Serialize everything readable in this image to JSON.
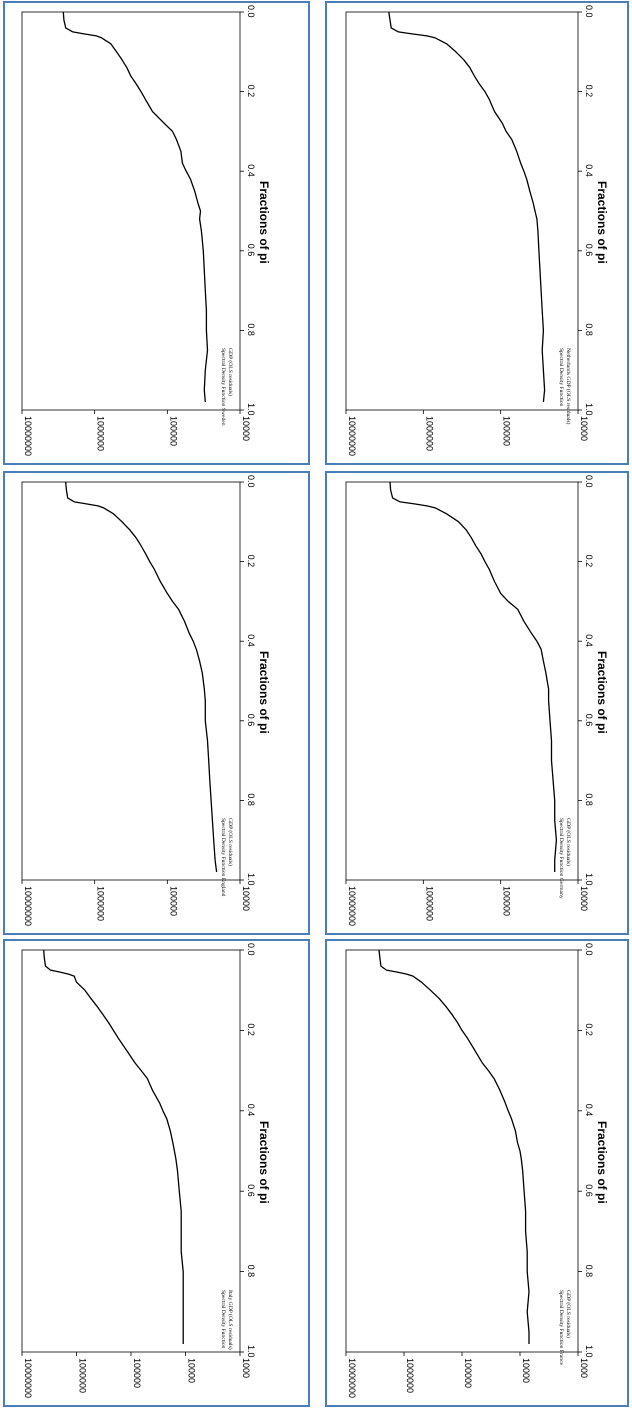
{
  "chart_data": [
    {
      "type": "line",
      "title": "",
      "xlabel": "Fractions of pi",
      "ylabel": "",
      "legend": [
        "Spectral Density Function Sweden",
        "GDP (OLS residuals)"
      ],
      "legend_position": "bottom-right",
      "xlim": [
        0,
        1
      ],
      "ylim": [
        10000,
        10000000
      ],
      "yscale": "log",
      "x_ticks": [
        "0.0",
        "0.2",
        "0.4",
        "0.6",
        "0.8",
        "1.0"
      ],
      "y_ticks": [
        "10000000",
        "1000000",
        "100000",
        "10000"
      ],
      "series": [
        {
          "x": [
            0.0,
            0.02,
            0.04,
            0.05,
            0.055,
            0.06,
            0.065,
            0.08,
            0.1,
            0.12,
            0.14,
            0.16,
            0.18,
            0.2,
            0.22,
            0.25,
            0.28,
            0.3,
            0.32,
            0.35,
            0.38,
            0.4,
            0.42,
            0.45,
            0.48,
            0.5,
            0.52,
            0.55,
            0.6,
            0.65,
            0.7,
            0.75,
            0.8,
            0.85,
            0.9,
            0.95,
            0.98
          ],
          "values": [
            2700000,
            2650000,
            2500000,
            2000000,
            1400000,
            950000,
            800000,
            600000,
            500000,
            420000,
            360000,
            320000,
            270000,
            230000,
            200000,
            160000,
            110000,
            85000,
            75000,
            65000,
            62000,
            55000,
            48000,
            42000,
            38000,
            35000,
            36000,
            34000,
            32000,
            31000,
            30000,
            29000,
            29000,
            28000,
            30000,
            31000,
            30000
          ]
        }
      ]
    },
    {
      "type": "line",
      "title": "",
      "xlabel": "Fractions of pi",
      "ylabel": "",
      "legend": [
        "Spectral Density Function",
        "Netherlands GDP (OLS residuals)"
      ],
      "legend_position": "bottom-right",
      "xlim": [
        0,
        1
      ],
      "ylim": [
        10000,
        10000000
      ],
      "yscale": "log",
      "x_ticks": [
        "0.0",
        "0.2",
        "0.4",
        "0.6",
        "0.8",
        "1.0"
      ],
      "y_ticks": [
        "10000000",
        "1000000",
        "100000",
        "10000"
      ],
      "series": [
        {
          "x": [
            0.0,
            0.02,
            0.04,
            0.05,
            0.055,
            0.06,
            0.065,
            0.08,
            0.1,
            0.12,
            0.14,
            0.16,
            0.18,
            0.2,
            0.22,
            0.25,
            0.28,
            0.3,
            0.32,
            0.35,
            0.38,
            0.4,
            0.42,
            0.45,
            0.48,
            0.5,
            0.52,
            0.55,
            0.6,
            0.65,
            0.7,
            0.75,
            0.8,
            0.85,
            0.9,
            0.95,
            0.98
          ],
          "values": [
            2800000,
            2700000,
            2600000,
            2100000,
            1400000,
            900000,
            700000,
            500000,
            380000,
            300000,
            250000,
            220000,
            190000,
            160000,
            140000,
            120000,
            95000,
            85000,
            72000,
            62000,
            55000,
            50000,
            46000,
            42000,
            38000,
            36000,
            34000,
            33000,
            32000,
            31000,
            30000,
            29000,
            28000,
            29000,
            28000,
            27000,
            28000
          ]
        }
      ]
    },
    {
      "type": "line",
      "title": "",
      "xlabel": "Fractions of pi",
      "ylabel": "",
      "legend": [
        "Spectral Density Function England",
        "GDP (OLS residuals)"
      ],
      "legend_position": "bottom-right",
      "xlim": [
        0,
        1
      ],
      "ylim": [
        10000,
        10000000
      ],
      "yscale": "log",
      "x_ticks": [
        "0.0",
        "0.2",
        "0.4",
        "0.6",
        "0.8",
        "1.0"
      ],
      "y_ticks": [
        "10000000",
        "1000000",
        "100000",
        "10000"
      ],
      "series": [
        {
          "x": [
            0.0,
            0.02,
            0.04,
            0.05,
            0.055,
            0.06,
            0.065,
            0.08,
            0.1,
            0.12,
            0.14,
            0.16,
            0.18,
            0.2,
            0.22,
            0.25,
            0.28,
            0.3,
            0.32,
            0.35,
            0.38,
            0.4,
            0.42,
            0.45,
            0.48,
            0.5,
            0.52,
            0.55,
            0.6,
            0.65,
            0.7,
            0.75,
            0.8,
            0.85,
            0.9,
            0.95,
            0.98
          ],
          "values": [
            2500000,
            2450000,
            2350000,
            1900000,
            1300000,
            900000,
            750000,
            550000,
            420000,
            330000,
            270000,
            230000,
            200000,
            175000,
            150000,
            125000,
            100000,
            85000,
            70000,
            58000,
            50000,
            44000,
            40000,
            36000,
            33000,
            32000,
            31000,
            30000,
            30000,
            28000,
            27000,
            26000,
            25000,
            24000,
            23000,
            22000,
            21000
          ]
        }
      ]
    },
    {
      "type": "line",
      "title": "",
      "xlabel": "Fractions of pi",
      "ylabel": "",
      "legend": [
        "Spectral Density Function Germany",
        "GDP (OLS residuals)"
      ],
      "legend_position": "bottom-right",
      "xlim": [
        0,
        1
      ],
      "ylim": [
        10000,
        10000000
      ],
      "yscale": "log",
      "x_ticks": [
        "0.0",
        "0.2",
        "0.4",
        "0.6",
        "0.8",
        "1.0"
      ],
      "y_ticks": [
        "10000000",
        "1000000",
        "100000",
        "10000"
      ],
      "series": [
        {
          "x": [
            0.0,
            0.02,
            0.04,
            0.05,
            0.055,
            0.06,
            0.065,
            0.08,
            0.1,
            0.12,
            0.14,
            0.16,
            0.18,
            0.2,
            0.22,
            0.25,
            0.28,
            0.3,
            0.32,
            0.35,
            0.38,
            0.4,
            0.42,
            0.45,
            0.48,
            0.5,
            0.52,
            0.55,
            0.6,
            0.65,
            0.7,
            0.75,
            0.8,
            0.85,
            0.9,
            0.95,
            0.98
          ],
          "values": [
            2700000,
            2650000,
            2500000,
            2000000,
            1300000,
            900000,
            700000,
            500000,
            350000,
            280000,
            240000,
            210000,
            180000,
            160000,
            140000,
            120000,
            100000,
            80000,
            60000,
            50000,
            40000,
            34000,
            30000,
            28000,
            26000,
            25000,
            24000,
            24000,
            23000,
            22000,
            22000,
            21000,
            20000,
            20000,
            19000,
            20000,
            20000
          ]
        }
      ]
    },
    {
      "type": "line",
      "title": "",
      "xlabel": "Fractions of pi",
      "ylabel": "",
      "legend": [
        "Spectral Density Function",
        "Italy GDP (OLS residuals)"
      ],
      "legend_position": "bottom-right",
      "xlim": [
        0,
        1
      ],
      "ylim": [
        1000,
        10000000
      ],
      "yscale": "log",
      "x_ticks": [
        "0.0",
        "0.2",
        "0.4",
        "0.6",
        "0.8",
        "1.0"
      ],
      "y_ticks": [
        "10000000",
        "1000000",
        "100000",
        "10000",
        "1000"
      ],
      "series": [
        {
          "x": [
            0.0,
            0.02,
            0.04,
            0.05,
            0.055,
            0.06,
            0.065,
            0.08,
            0.1,
            0.12,
            0.14,
            0.16,
            0.18,
            0.2,
            0.22,
            0.25,
            0.28,
            0.3,
            0.32,
            0.35,
            0.38,
            0.4,
            0.42,
            0.45,
            0.48,
            0.5,
            0.52,
            0.55,
            0.6,
            0.65,
            0.7,
            0.75,
            0.8,
            0.85,
            0.9,
            0.95,
            0.98
          ],
          "values": [
            4000000,
            3900000,
            3700000,
            3000000,
            2000000,
            1400000,
            1100000,
            1000000,
            700000,
            550000,
            420000,
            330000,
            260000,
            210000,
            170000,
            120000,
            85000,
            65000,
            50000,
            40000,
            30000,
            26000,
            22000,
            19000,
            17000,
            16000,
            15000,
            14000,
            13000,
            12000,
            12000,
            12000,
            11000,
            11000,
            11000,
            11000,
            11000
          ]
        }
      ]
    },
    {
      "type": "line",
      "title": "",
      "xlabel": "Fractions of pi",
      "ylabel": "",
      "legend": [
        "Spectral Density Function France",
        "GDP (OLS residuals)"
      ],
      "legend_position": "bottom-right",
      "xlim": [
        0,
        1
      ],
      "ylim": [
        1000,
        10000000
      ],
      "yscale": "log",
      "x_ticks": [
        "0.0",
        "0.2",
        "0.4",
        "0.6",
        "0.8",
        "1.0"
      ],
      "y_ticks": [
        "10000000",
        "1000000",
        "100000",
        "10000",
        "1000"
      ],
      "series": [
        {
          "x": [
            0.0,
            0.02,
            0.04,
            0.05,
            0.055,
            0.06,
            0.065,
            0.08,
            0.1,
            0.12,
            0.14,
            0.16,
            0.18,
            0.2,
            0.22,
            0.25,
            0.28,
            0.3,
            0.32,
            0.35,
            0.38,
            0.4,
            0.42,
            0.45,
            0.48,
            0.5,
            0.52,
            0.55,
            0.6,
            0.65,
            0.7,
            0.75,
            0.8,
            0.85,
            0.9,
            0.95,
            0.98
          ],
          "values": [
            2700000,
            2600000,
            2500000,
            2000000,
            1300000,
            900000,
            700000,
            500000,
            350000,
            250000,
            190000,
            150000,
            120000,
            100000,
            80000,
            60000,
            45000,
            35000,
            28000,
            22000,
            18000,
            16000,
            14000,
            12000,
            11000,
            10000,
            9500,
            9000,
            8500,
            8000,
            8000,
            7500,
            7500,
            7000,
            7500,
            7000,
            7000
          ]
        }
      ]
    }
  ]
}
